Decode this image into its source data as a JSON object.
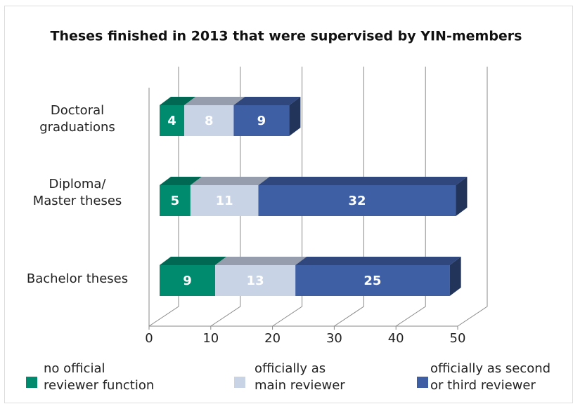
{
  "chart_data": {
    "type": "bar",
    "orientation": "horizontal",
    "stacked": true,
    "3d": true,
    "title": "Theses finished in 2013 that were supervised by YIN-members",
    "categories": [
      "Doctoral\ngraduations",
      "Diploma/\nMaster theses",
      "Bachelor theses"
    ],
    "series": [
      {
        "name": "no official\nreviewer function",
        "color": "#008a6e",
        "values": [
          4,
          5,
          9
        ]
      },
      {
        "name": "officially as\nmain reviewer",
        "color": "#c8d3e6",
        "values": [
          8,
          11,
          13
        ]
      },
      {
        "name": "officially as second\nor third reviewer",
        "color": "#3f5fa5",
        "values": [
          9,
          32,
          25
        ]
      }
    ],
    "xlim": [
      0,
      50
    ],
    "xticks": [
      0,
      10,
      20,
      30,
      40,
      50
    ],
    "grid": true
  }
}
